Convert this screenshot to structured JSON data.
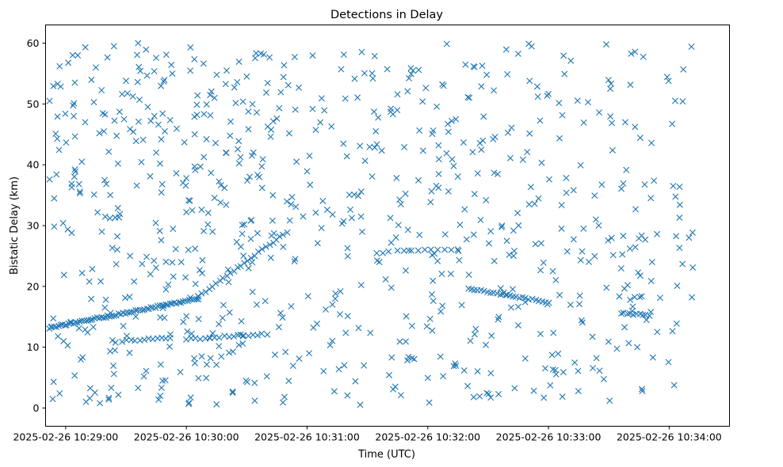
{
  "chart_data": {
    "type": "scatter",
    "title": "Detections in Delay",
    "xlabel": "Time (UTC)",
    "ylabel": "Bistatic Delay (km)",
    "marker": "x",
    "color": "#1f77b4",
    "x_unit": "seconds since 2025-02-26 10:29:00 UTC",
    "xlim": [
      -10,
      330
    ],
    "ylim": [
      -3,
      63
    ],
    "x_ticks": [
      {
        "value": 0,
        "label": "2025-02-26 10:29:00"
      },
      {
        "value": 60,
        "label": "2025-02-26 10:30:00"
      },
      {
        "value": 120,
        "label": "2025-02-26 10:31:00"
      },
      {
        "value": 180,
        "label": "2025-02-26 10:32:00"
      },
      {
        "value": 240,
        "label": "2025-02-26 10:33:00"
      },
      {
        "value": 300,
        "label": "2025-02-26 10:34:00"
      }
    ],
    "y_ticks": [
      {
        "value": 0,
        "label": "0"
      },
      {
        "value": 10,
        "label": "10"
      },
      {
        "value": 20,
        "label": "20"
      },
      {
        "value": 30,
        "label": "30"
      },
      {
        "value": 40,
        "label": "40"
      },
      {
        "value": 50,
        "label": "50"
      },
      {
        "value": 60,
        "label": "60"
      }
    ],
    "tracks": [
      {
        "x_start": -8,
        "x_end": 66,
        "y_start": 13.2,
        "y_end": 18.0,
        "points": 70
      },
      {
        "x_start": 66,
        "x_end": 110,
        "y_start": 18.3,
        "y_end": 29.0,
        "points": 26
      },
      {
        "x_start": 28,
        "x_end": 52,
        "y_start": 11.0,
        "y_end": 11.6,
        "points": 12
      },
      {
        "x_start": 60,
        "x_end": 100,
        "y_start": 11.3,
        "y_end": 12.2,
        "points": 18
      },
      {
        "x_start": 165,
        "x_end": 195,
        "y_start": 25.8,
        "y_end": 26.0,
        "points": 10
      },
      {
        "x_start": 200,
        "x_end": 240,
        "y_start": 19.7,
        "y_end": 17.4,
        "points": 26
      },
      {
        "x_start": 276,
        "x_end": 290,
        "y_start": 15.6,
        "y_end": 15.3,
        "points": 10
      }
    ],
    "background": {
      "count": 700,
      "x_range": [
        -8,
        312
      ],
      "y_range": [
        0.5,
        60
      ],
      "seed": 20250226
    },
    "series": [
      {
        "name": "detections",
        "points": [
          [
            -8,
            50.5
          ],
          [
            -8,
            37.6
          ],
          [
            -7,
            13.4
          ],
          [
            -6,
            4.3
          ],
          [
            -5,
            45.1
          ],
          [
            -4,
            53.3
          ],
          [
            -3,
            56.2
          ],
          [
            -3,
            2.4
          ],
          [
            -1,
            11.0
          ],
          [
            1,
            10.3
          ],
          [
            3,
            36.3
          ],
          [
            3,
            28.8
          ],
          [
            4,
            48.0
          ],
          [
            6,
            58.0
          ],
          [
            8,
            40.5
          ],
          [
            12,
            1.6
          ],
          [
            14,
            50.3
          ],
          [
            15,
            56.0
          ],
          [
            17,
            0.8
          ],
          [
            18,
            29.0
          ],
          [
            19,
            45.5
          ],
          [
            20,
            17.8
          ],
          [
            22,
            31.2
          ],
          [
            24,
            59.5
          ],
          [
            24,
            5.6
          ],
          [
            26,
            40.2
          ],
          [
            29,
            47.5
          ],
          [
            30,
            53.8
          ],
          [
            32,
            25.0
          ],
          [
            34,
            20.8
          ],
          [
            35,
            43.9
          ],
          [
            36,
            3.3
          ],
          [
            36,
            60.0
          ],
          [
            38,
            23.7
          ],
          [
            40,
            6.1
          ],
          [
            42,
            38.1
          ],
          [
            45,
            42.0
          ],
          [
            47,
            2.0
          ],
          [
            48,
            36.8
          ],
          [
            50,
            58.1
          ],
          [
            51,
            20.3
          ],
          [
            52,
            12.1
          ],
          [
            53,
            55.0
          ],
          [
            55,
            38.6
          ],
          [
            57,
            5.9
          ],
          [
            59,
            43.7
          ],
          [
            60,
            32.2
          ],
          [
            60,
            15.1
          ],
          [
            61,
            26.0
          ],
          [
            62,
            59.3
          ],
          [
            64,
            47.9
          ],
          [
            66,
            4.9
          ],
          [
            67,
            39.7
          ],
          [
            68,
            24.3
          ],
          [
            70,
            44.2
          ],
          [
            72,
            8.2
          ],
          [
            73,
            29.0
          ],
          [
            74,
            51.0
          ],
          [
            75,
            0.6
          ],
          [
            77,
            33.8
          ],
          [
            78,
            14.8
          ],
          [
            80,
            55.5
          ],
          [
            81,
            20.7
          ],
          [
            82,
            47.1
          ],
          [
            83,
            2.7
          ],
          [
            85,
            27.3
          ],
          [
            86,
            43.9
          ],
          [
            88,
            10.6
          ],
          [
            90,
            54.5
          ],
          [
            92,
            30.8
          ],
          [
            94,
            1.2
          ],
          [
            95,
            17.0
          ],
          [
            97,
            58.3
          ],
          [
            98,
            40.9
          ],
          [
            100,
            5.2
          ],
          [
            102,
            24.7
          ],
          [
            103,
            35.0
          ],
          [
            105,
            47.6
          ],
          [
            106,
            13.3
          ],
          [
            108,
            0.9
          ]
        ]
      }
    ]
  }
}
